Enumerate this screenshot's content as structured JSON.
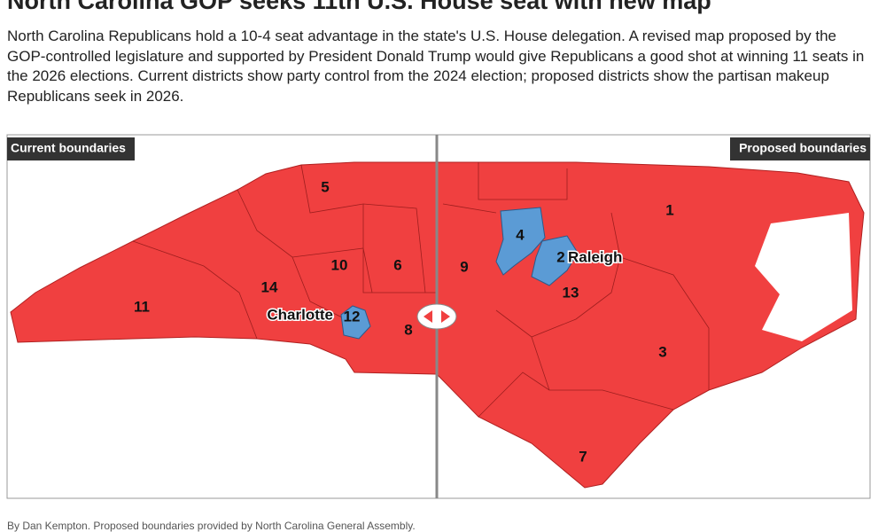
{
  "header": {
    "title": "North Carolina GOP seeks 11th U.S. House seat with new map",
    "description": "North Carolina Republicans hold a 10-4 seat advantage in the state's U.S. House delegation. A revised map proposed by the GOP-controlled legislature and supported by President Donald Trump would give Republicans a good shot at winning 11 seats in the 2026 elections. Current districts show party control from the 2024 election; proposed districts show the partisan makeup Republicans seek in 2026."
  },
  "map": {
    "left_label": "Current boundaries",
    "right_label": "Proposed boundaries",
    "current_districts": [
      "5",
      "10",
      "6",
      "14",
      "11",
      "12",
      "8"
    ],
    "current_city": "Charlotte",
    "proposed_districts": [
      "1",
      "4",
      "2",
      "9",
      "13",
      "3",
      "7"
    ],
    "proposed_city": "Raleigh"
  },
  "credit": "By Dan Kempton. Proposed boundaries provided by North Carolina General Assembly."
}
